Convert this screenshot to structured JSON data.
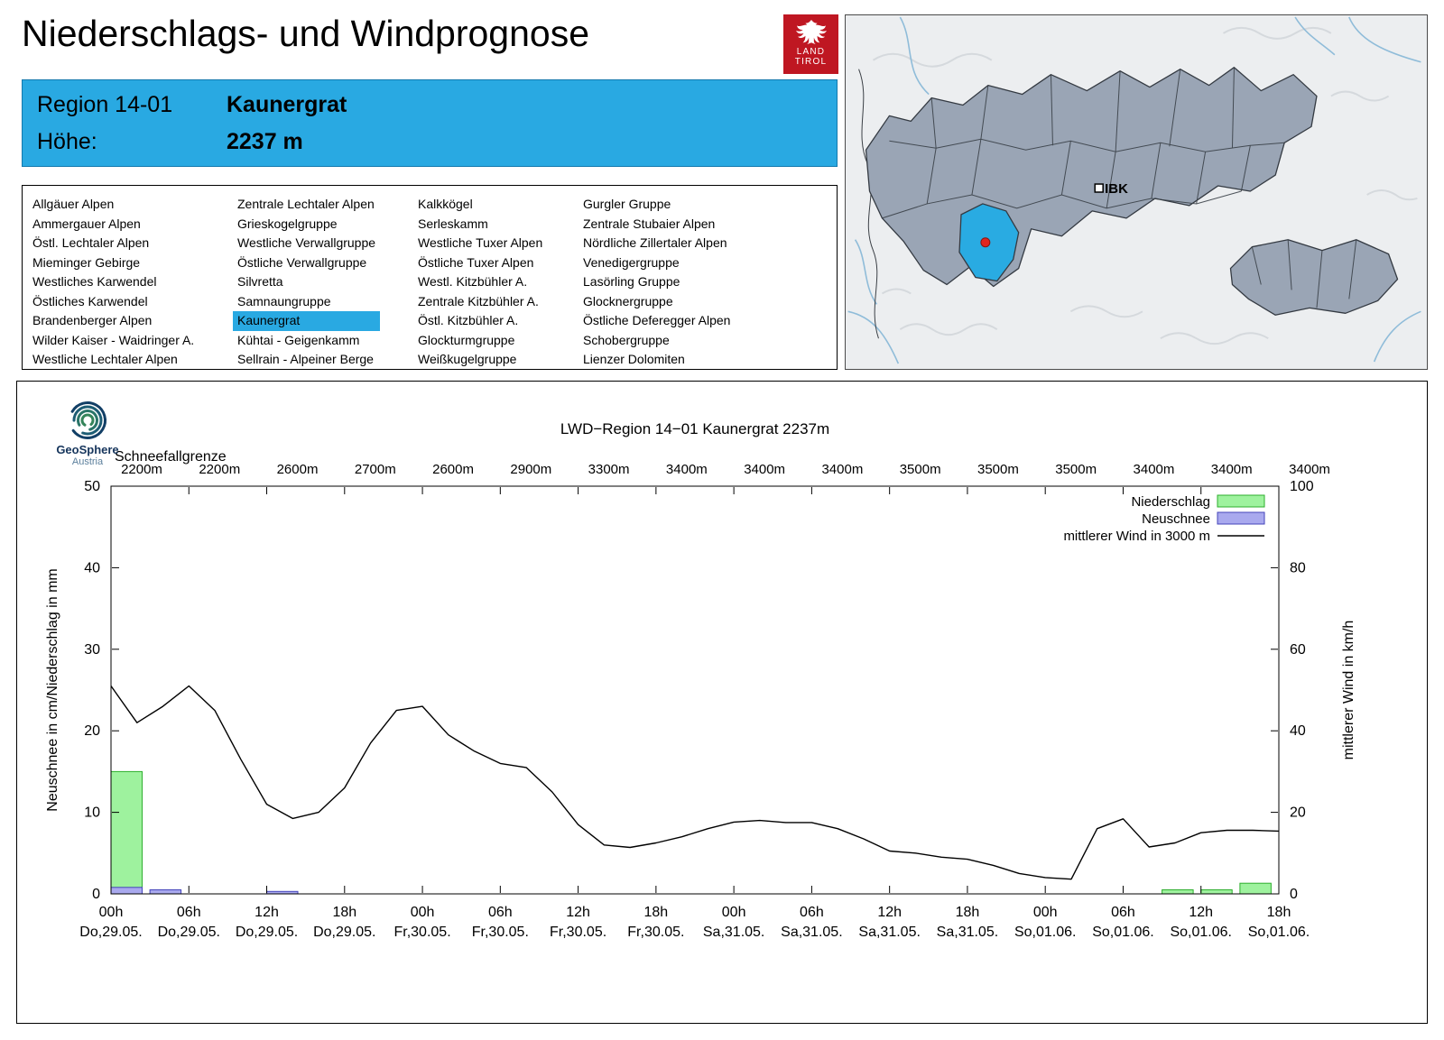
{
  "page": {
    "title": "Niederschlags- und Windprognose"
  },
  "logo": {
    "line1": "LAND",
    "line2": "TIROL",
    "color": "#bf1722"
  },
  "map": {
    "ibk_label": "IBK",
    "highlight_color": "#29abe2",
    "region_fill": "#9aa5b5"
  },
  "region_header": {
    "region_label": "Region 14-01",
    "region_name": "Kaunergrat",
    "hoehe_label": "Höhe:",
    "hoehe_value": "2237 m",
    "bg_color": "#29a9e2"
  },
  "region_list": {
    "selected": "Kaunergrat",
    "columns": [
      [
        "Allgäuer Alpen",
        "Ammergauer Alpen",
        "Östl. Lechtaler Alpen",
        "Mieminger Gebirge",
        "Westliches Karwendel",
        "Östliches Karwendel",
        "Brandenberger Alpen",
        "Wilder Kaiser - Waidringer A.",
        "Westliche Lechtaler Alpen"
      ],
      [
        "Zentrale Lechtaler Alpen",
        "Grieskogelgruppe",
        "Westliche Verwallgruppe",
        "Östliche Verwallgruppe",
        "Silvretta",
        "Samnaungruppe",
        "Kaunergrat",
        "Kühtai - Geigenkamm",
        "Sellrain - Alpeiner Berge"
      ],
      [
        "Kalkkögel",
        "Serleskamm",
        "Westliche Tuxer Alpen",
        "Östliche Tuxer Alpen",
        "Westl. Kitzbühler A.",
        "Zentrale Kitzbühler A.",
        "Östl. Kitzbühler A.",
        "Glockturmgruppe",
        "Weißkugelgruppe"
      ],
      [
        "Gurgler Gruppe",
        "Zentrale Stubaier Alpen",
        "Nördliche Zillertaler Alpen",
        "Venedigergruppe",
        "Lasörling Gruppe",
        "Glocknergruppe",
        "Östliche Deferegger Alpen",
        "Schobergruppe",
        "Lienzer Dolomiten"
      ]
    ]
  },
  "geosphere": {
    "name": "GeoSphere",
    "sub": "Austria"
  },
  "chart_data": {
    "type": "line+bar",
    "title": "LWD−Region 14−01 Kaunergrat 2237m",
    "snowline_label": "Schneefallgrenze",
    "snowline_values": [
      "2200m",
      "2200m",
      "2600m",
      "2700m",
      "2600m",
      "2900m",
      "3300m",
      "3400m",
      "3400m",
      "3400m",
      "3500m",
      "3500m",
      "3500m",
      "3400m",
      "3400m",
      "3400m"
    ],
    "x_ticks": [
      {
        "time": "00h",
        "date": "Do,29.05."
      },
      {
        "time": "06h",
        "date": "Do,29.05."
      },
      {
        "time": "12h",
        "date": "Do,29.05."
      },
      {
        "time": "18h",
        "date": "Do,29.05."
      },
      {
        "time": "00h",
        "date": "Fr,30.05."
      },
      {
        "time": "06h",
        "date": "Fr,30.05."
      },
      {
        "time": "12h",
        "date": "Fr,30.05."
      },
      {
        "time": "18h",
        "date": "Fr,30.05."
      },
      {
        "time": "00h",
        "date": "Sa,31.05."
      },
      {
        "time": "06h",
        "date": "Sa,31.05."
      },
      {
        "time": "12h",
        "date": "Sa,31.05."
      },
      {
        "time": "18h",
        "date": "Sa,31.05."
      },
      {
        "time": "00h",
        "date": "So,01.06."
      },
      {
        "time": "06h",
        "date": "So,01.06."
      },
      {
        "time": "12h",
        "date": "So,01.06."
      },
      {
        "time": "18h",
        "date": "So,01.06."
      }
    ],
    "x_span_hours": 90,
    "ylabel_left": "Neuschnee in cm/Niederschlag in mm",
    "ylabel_right": "mittlerer Wind in km/h",
    "ylim_left": [
      0,
      50
    ],
    "ylim_right": [
      0,
      100
    ],
    "legend": [
      {
        "label": "Niederschlag",
        "type": "box",
        "fill": "#9ef29e",
        "stroke": "#2eaf2e"
      },
      {
        "label": "Neuschnee",
        "type": "box",
        "fill": "#a9a9ee",
        "stroke": "#4444bb"
      },
      {
        "label": "mittlerer Wind in 3000 m",
        "type": "line",
        "stroke": "#000000"
      }
    ],
    "series": {
      "precip_mm": {
        "interval_hours": 3,
        "values": [
          15,
          0,
          0,
          0,
          0,
          0,
          0,
          0,
          0,
          0,
          0,
          0,
          0,
          0,
          0,
          0,
          0,
          0,
          0,
          0,
          0,
          0,
          0,
          0,
          0,
          0,
          0,
          0.5,
          0.5,
          1.3
        ]
      },
      "snow_cm": {
        "interval_hours": 3,
        "values": [
          0.8,
          0.5,
          0,
          0,
          0.3,
          0,
          0,
          0,
          0,
          0,
          0,
          0,
          0,
          0,
          0,
          0,
          0,
          0,
          0,
          0,
          0,
          0,
          0,
          0,
          0,
          0,
          0,
          0,
          0,
          0
        ]
      },
      "wind_kmh": {
        "step_hours": 2,
        "values": [
          51,
          42,
          46,
          51,
          45,
          33,
          22,
          18.5,
          20,
          26,
          37,
          45,
          46,
          39,
          35,
          32,
          31,
          25,
          17,
          12,
          11.4,
          12.5,
          14,
          16,
          17.6,
          18,
          17.5,
          17.5,
          16,
          13.5,
          10.5,
          10,
          9,
          8.5,
          7,
          5,
          4,
          3.6,
          16,
          18.4,
          11.5,
          12.5,
          15,
          15.6,
          15.6,
          15.4
        ]
      }
    }
  }
}
